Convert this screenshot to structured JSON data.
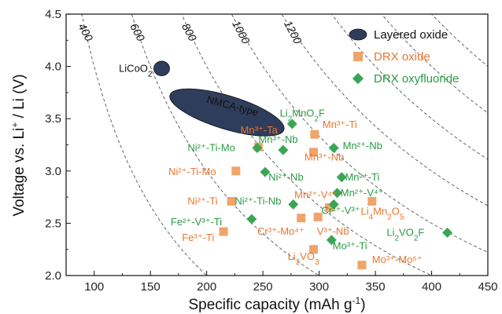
{
  "chart_data": {
    "type": "scatter",
    "xlabel": "Specific capacity (mAh g",
    "xlabel_sup": "-1",
    "xlabel_end": ")",
    "ylabel_pre": "Voltage vs. Li",
    "ylabel_sup": "+",
    "ylabel_post": " / Li (V)",
    "xlim": [
      75,
      450
    ],
    "ylim": [
      2.0,
      4.5
    ],
    "xticks": [
      "100",
      "150",
      "200",
      "250",
      "300",
      "350",
      "400",
      "450"
    ],
    "yticks": [
      "2.0",
      "2.5",
      "3.0",
      "3.5",
      "4.0",
      "4.5"
    ],
    "energy_density_lines": [
      400,
      600,
      800,
      1000,
      1200,
      1400,
      1600,
      1800
    ],
    "energy_density_labels": [
      "400",
      "600",
      "800",
      "1000",
      "1200"
    ],
    "colors": {
      "layered": "#2f3d5c",
      "drx_oxide": "#f0a46a",
      "drx_oxyfluoride": "#3aa655",
      "orange_text": "#e8772e",
      "green_text": "#2a9a45"
    },
    "legend": [
      {
        "label": "Layered oxide",
        "marker": "ellipse"
      },
      {
        "label": "DRX oxide",
        "marker": "square"
      },
      {
        "label": "DRX oxyfluoride",
        "marker": "diamond"
      }
    ],
    "layered_regions": [
      {
        "label": "LiCoO",
        "sub": "2",
        "cx": 160,
        "cy": 3.98,
        "rx": 7,
        "ry": 0.07
      },
      {
        "label": "NMCA-type",
        "cx": 218,
        "cy": 3.56,
        "rx": 53,
        "ry": 0.16,
        "angle_deg": 17
      }
    ],
    "series": [
      {
        "name": "DRX oxide",
        "marker": "square",
        "points": [
          {
            "x": 246,
            "y": 3.23
          },
          {
            "x": 296,
            "y": 3.35
          },
          {
            "x": 295,
            "y": 3.18
          },
          {
            "x": 226,
            "y": 3.0
          },
          {
            "x": 222,
            "y": 2.71
          },
          {
            "x": 284,
            "y": 2.55
          },
          {
            "x": 299,
            "y": 2.56
          },
          {
            "x": 309,
            "y": 2.65
          },
          {
            "x": 347,
            "y": 2.71
          },
          {
            "x": 215,
            "y": 2.42
          },
          {
            "x": 295,
            "y": 2.25
          },
          {
            "x": 338,
            "y": 2.1
          }
        ]
      },
      {
        "name": "DRX oxyfluoride",
        "marker": "diamond",
        "points": [
          {
            "x": 276,
            "y": 3.45
          },
          {
            "x": 245,
            "y": 3.22
          },
          {
            "x": 268,
            "y": 3.2
          },
          {
            "x": 313,
            "y": 3.22
          },
          {
            "x": 252,
            "y": 2.99
          },
          {
            "x": 320,
            "y": 2.94
          },
          {
            "x": 277,
            "y": 2.68
          },
          {
            "x": 316,
            "y": 2.79
          },
          {
            "x": 313,
            "y": 2.68
          },
          {
            "x": 240,
            "y": 2.54
          },
          {
            "x": 311,
            "y": 2.34
          },
          {
            "x": 414,
            "y": 2.41
          }
        ]
      }
    ],
    "annotations": [
      {
        "text": "Mn³⁺-Ta",
        "x": 230,
        "y": 3.36,
        "color": "orange"
      },
      {
        "text": "Mn³⁺-Ti",
        "x": 303,
        "y": 3.41,
        "color": "orange"
      },
      {
        "text": "Mn³⁺-Nb",
        "x": 246,
        "y": 3.27,
        "color": "green"
      },
      {
        "text": "Mn²⁺-Nb",
        "x": 321,
        "y": 3.21,
        "color": "green"
      },
      {
        "text": "Ni²⁺-Ti-Mo",
        "x": 183,
        "y": 3.19,
        "color": "green"
      },
      {
        "text": "Mn³⁺-Nb",
        "x": 287,
        "y": 3.1,
        "color": "orange"
      },
      {
        "text": "Ni²⁺-Ti-Mo",
        "x": 166,
        "y": 2.96,
        "color": "orange"
      },
      {
        "text": "Ni²⁺-Nb",
        "x": 255,
        "y": 2.91,
        "color": "green"
      },
      {
        "text": "Mn²⁺-Ti",
        "x": 323,
        "y": 2.91,
        "color": "green"
      },
      {
        "text": "Ni²⁺-Ti",
        "x": 183,
        "y": 2.68,
        "color": "orange"
      },
      {
        "text": "Ni²⁺-Ti-Nb",
        "x": 225,
        "y": 2.68,
        "color": "green"
      },
      {
        "text": "Mn²⁺-V⁴⁺",
        "x": 278,
        "y": 2.74,
        "color": "orange"
      },
      {
        "text": "Mn²⁺-V⁴⁺",
        "x": 319,
        "y": 2.76,
        "color": "green"
      },
      {
        "text": "Cr³⁺-V³⁺",
        "x": 302,
        "y": 2.59,
        "color": "green"
      },
      {
        "text": "Fe²⁺-V³⁺-Ti",
        "x": 168,
        "y": 2.48,
        "color": "green"
      },
      {
        "text": "Cr³⁺-Mo⁴⁺",
        "x": 245,
        "y": 2.39,
        "color": "orange"
      },
      {
        "text": "V³⁺-Nb",
        "x": 298,
        "y": 2.39,
        "color": "orange"
      },
      {
        "text": "Fe³⁺-Ti",
        "x": 178,
        "y": 2.33,
        "color": "orange"
      },
      {
        "text": "Mo³⁺-Ti",
        "x": 312,
        "y": 2.25,
        "color": "green"
      },
      {
        "text": "Li",
        "sub": "2",
        "tail": "VO",
        "sub2": "3",
        "x": 272,
        "y": 2.15,
        "color": "orange"
      },
      {
        "text": "Li",
        "sub": "4",
        "tail": "Mn",
        "sub2": "2",
        "tail2": "O",
        "sub3": "5",
        "x": 337,
        "y": 2.58,
        "color": "orange"
      },
      {
        "text": "Li",
        "sub": "2",
        "tail": "MnO",
        "sub2": "2",
        "tail2": "F",
        "x": 265,
        "y": 3.52,
        "color": "green"
      },
      {
        "text": "Li",
        "sub": "2",
        "tail": "VO",
        "sub2": "2",
        "tail2": "F",
        "x": 360,
        "y": 2.38,
        "color": "green"
      },
      {
        "text": "Mo³⁺-Mo⁶⁺",
        "x": 347,
        "y": 2.12,
        "color": "orange"
      }
    ]
  }
}
